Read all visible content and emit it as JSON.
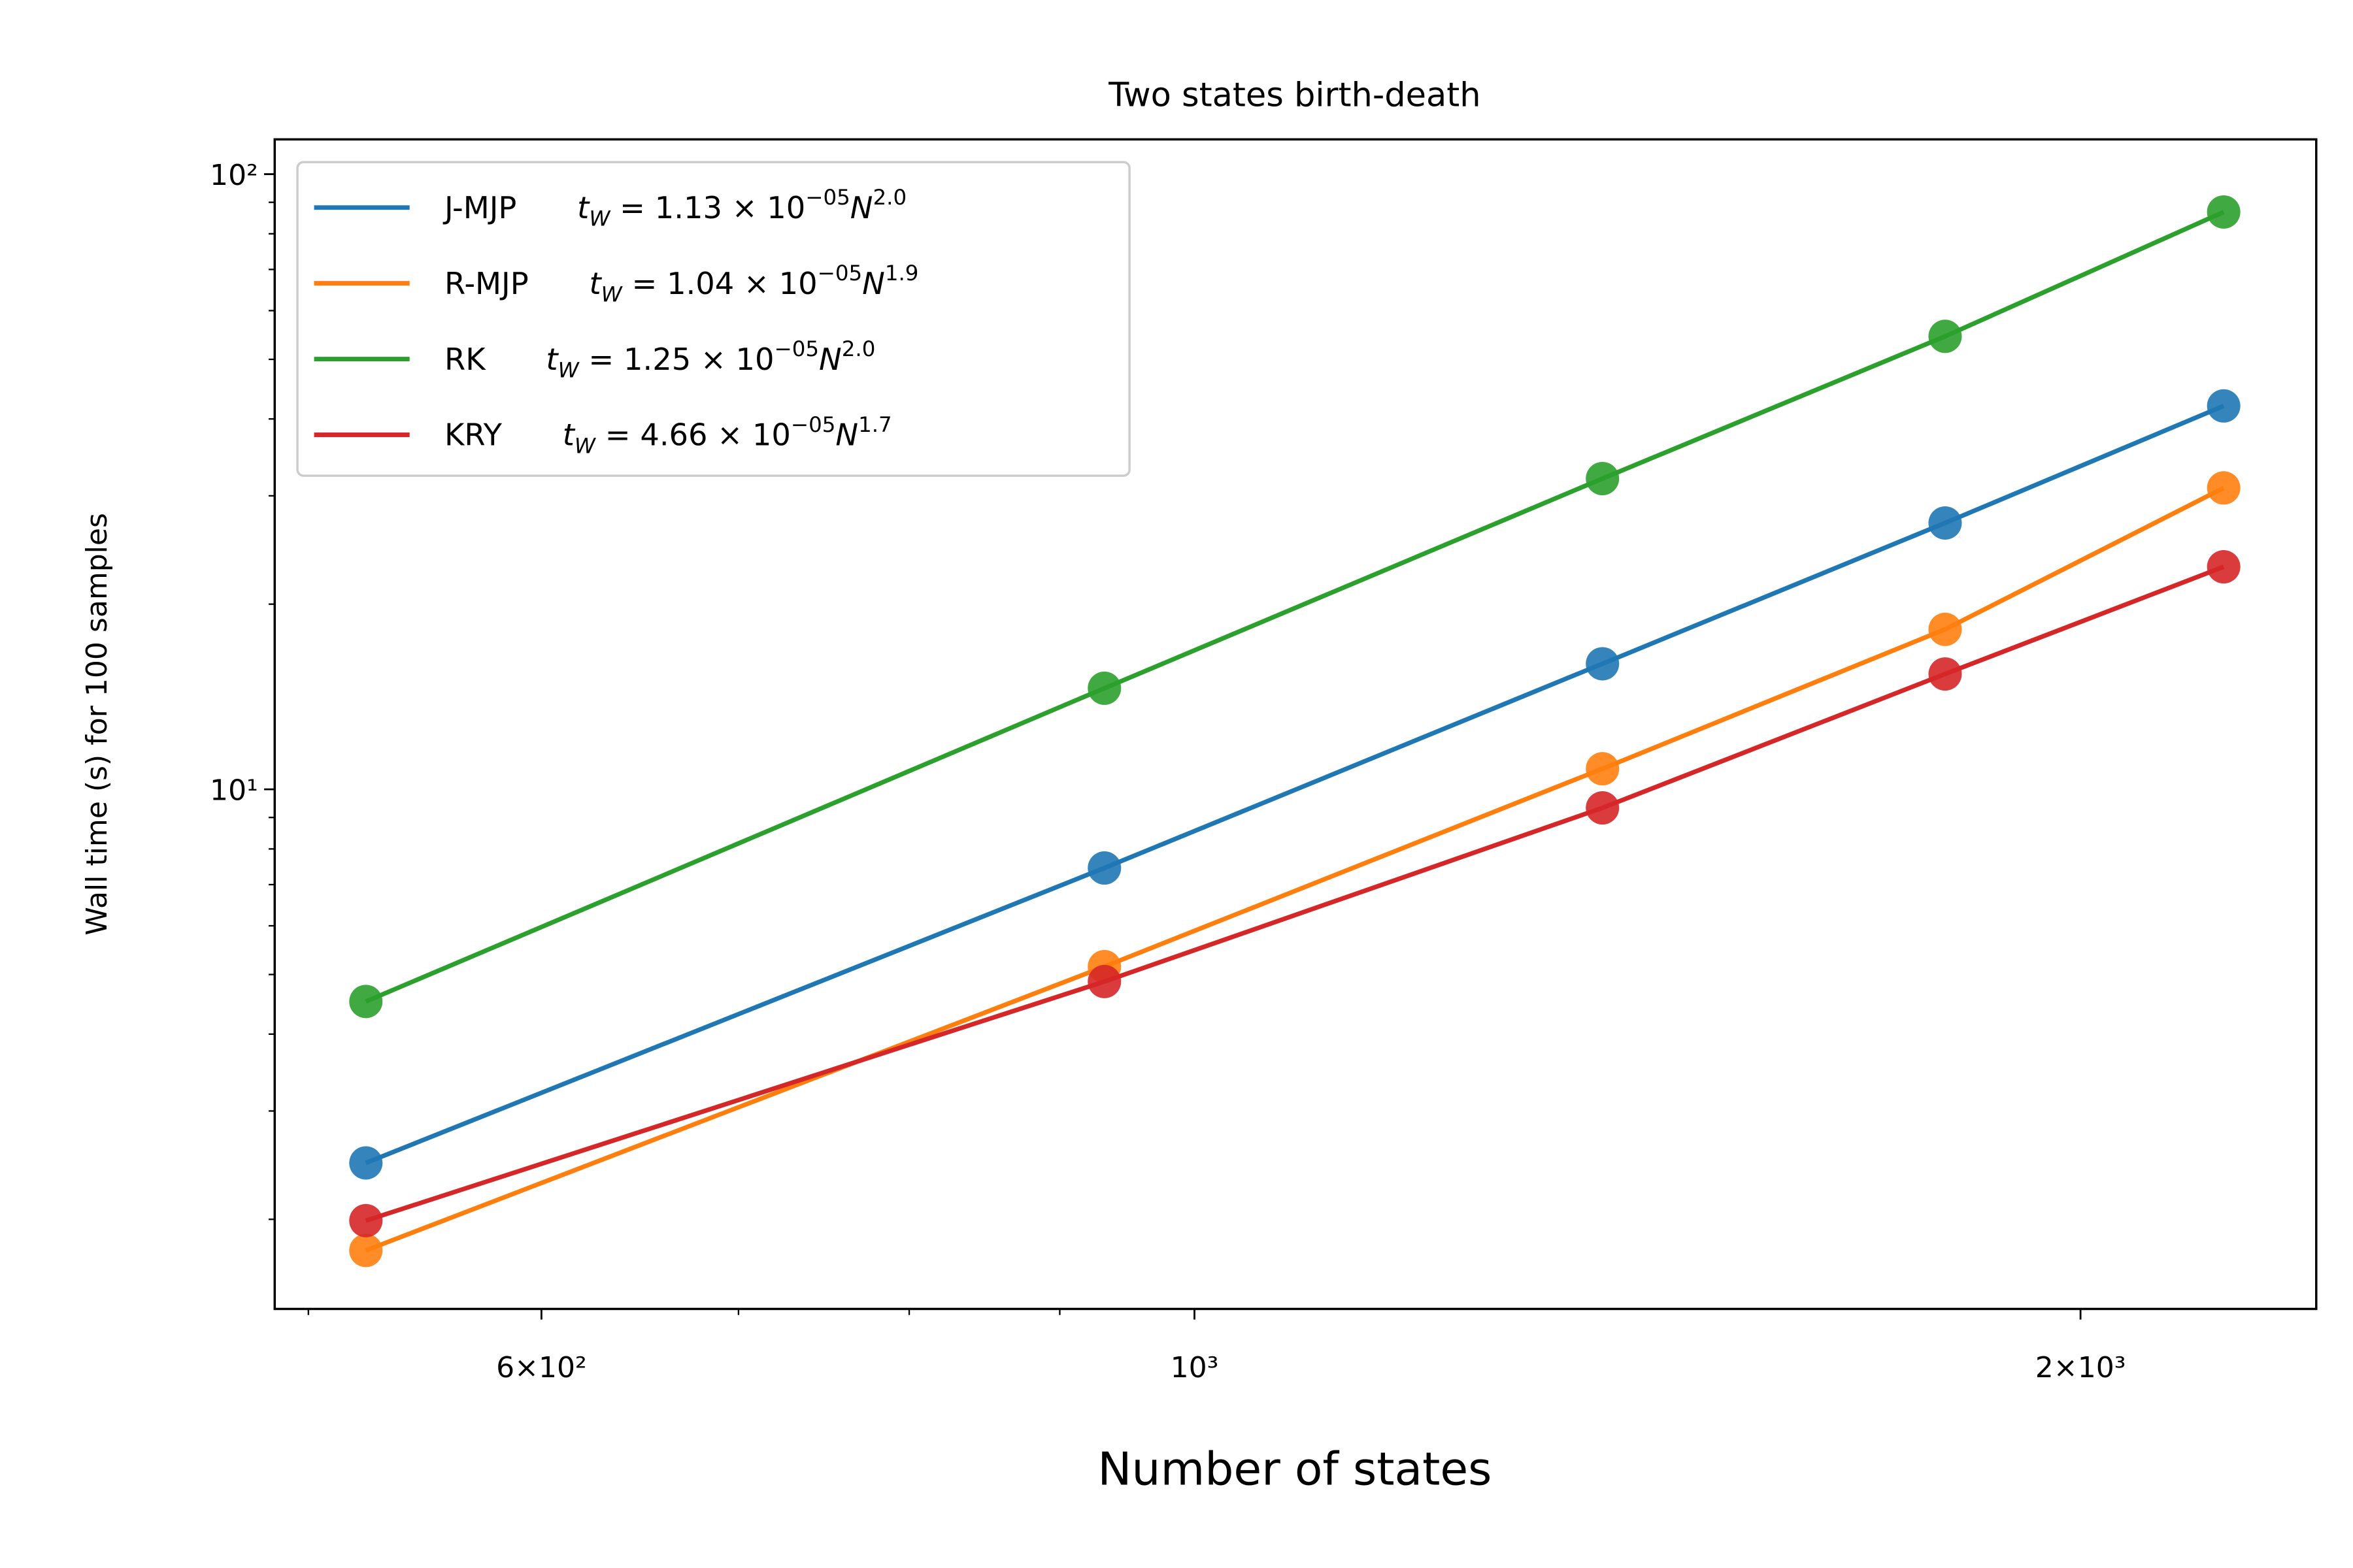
{
  "chart_data": {
    "type": "line",
    "title": "Two states birth-death",
    "x_label": "Number of states",
    "y_label": "Wall time (s) for 100 samples",
    "x": [
      523,
      932,
      1376,
      1799,
      2237
    ],
    "xlog": true,
    "ylog": true,
    "xlim": [
      487,
      2405
    ],
    "ylim": [
      1.43,
      113.9
    ],
    "xticks": [
      {
        "value": 600,
        "label": "6×10²"
      },
      {
        "value": 1000,
        "label": "10³"
      },
      {
        "value": 2000,
        "label": "2×10³"
      }
    ],
    "xticks_minor": [
      500,
      700,
      800,
      900
    ],
    "yticks": [
      {
        "value": 10,
        "label": "10¹"
      },
      {
        "value": 100,
        "label": "10²"
      }
    ],
    "yticks_minor": [
      2,
      3,
      4,
      5,
      6,
      7,
      8,
      9,
      20,
      30,
      40,
      50,
      60,
      70,
      80,
      90
    ],
    "legend_position": "upper left",
    "fit_symbols": {
      "t": "t",
      "sub": "W",
      "eq": " = ",
      "times": " × ",
      "base": "10",
      "var": "N"
    },
    "series": [
      {
        "name": "J-MJP",
        "color": "#1f77b4",
        "fit": [
          "1.13",
          "−05",
          "2.0"
        ],
        "values": [
          2.47,
          7.45,
          16.0,
          27.1,
          42.0
        ]
      },
      {
        "name": "R-MJP",
        "color": "#ff7f0e",
        "fit": [
          "1.04",
          "−05",
          "1.9"
        ],
        "values": [
          1.78,
          5.15,
          10.8,
          18.2,
          30.9
        ]
      },
      {
        "name": "RK",
        "color": "#2ca02c",
        "fit": [
          "1.25",
          "−05",
          "2.0"
        ],
        "values": [
          4.52,
          14.6,
          32.0,
          54.5,
          86.8
        ]
      },
      {
        "name": "KRY",
        "color": "#d62728",
        "fit": [
          "4.66",
          "−05",
          "1.7"
        ],
        "values": [
          1.99,
          4.87,
          9.33,
          15.4,
          23.0
        ]
      }
    ]
  }
}
